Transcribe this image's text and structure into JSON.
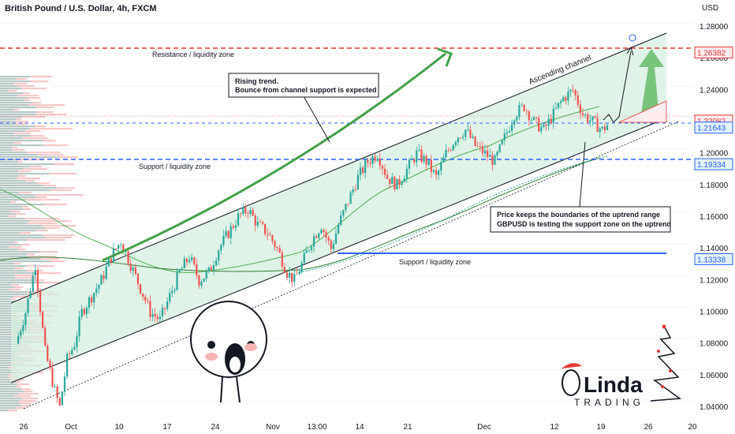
{
  "header": {
    "title": "British Pound / U.S. Dollar, 4h, FXCM",
    "currency": "USD"
  },
  "colors": {
    "up": "#26a69a",
    "down": "#ef5350",
    "channel_fill": "#d6efe0",
    "resistance": "#e53935",
    "support": "#2962ff",
    "arrow_green": "#43a047"
  },
  "annotations": {
    "resistance_zone": "Resistance / liquidity zone",
    "support_zone_1": "Support / liquidity zone",
    "support_zone_2": "Support / liquidity zone",
    "ascending_channel": "Ascending channel",
    "callout_1_line1": "Rising trend.",
    "callout_1_line2": "Bounce from channel support is expected",
    "callout_2_line1": "Price keeps the boundaries of the uptrend range",
    "callout_2_line2": "GBPUSD is testing the support zone on the uptrend"
  },
  "logo": {
    "brand_text": "Linda",
    "sub_text": "TRADING"
  },
  "chart_data": {
    "type": "candlestick",
    "symbol": "GBPUSD",
    "timeframe": "4h",
    "ylim": [
      1.033,
      1.29
    ],
    "y_ticks": [
      "1.28000",
      "1.26000",
      "1.24000",
      "1.22000",
      "1.20000",
      "1.18000",
      "1.16000",
      "1.14000",
      "1.12000",
      "1.10000",
      "1.08000",
      "1.06000",
      "1.04000"
    ],
    "x_ticks": [
      "26",
      "Oct",
      "10",
      "17",
      "24",
      "Nov",
      "13:00",
      "14",
      "21",
      "Dec",
      "12",
      "19",
      "26",
      "20"
    ],
    "price_labels": [
      {
        "value": "1.26382",
        "kind": "resistance"
      },
      {
        "value": "1.22082",
        "kind": "last"
      },
      {
        "value": "1.21643",
        "kind": "support"
      },
      {
        "value": "1.19334",
        "kind": "support"
      },
      {
        "value": "1.13338",
        "kind": "support"
      }
    ],
    "levels": [
      {
        "name": "Resistance / liquidity zone",
        "price": 1.26382
      },
      {
        "name": "Support / liquidity zone",
        "price": 1.19334
      },
      {
        "name": "Support / liquidity zone",
        "price": 1.13338
      },
      {
        "name": "support",
        "price": 1.21643
      }
    ],
    "close_path": [
      [
        0,
        1.08
      ],
      [
        4,
        1.1
      ],
      [
        8,
        1.13
      ],
      [
        12,
        1.075
      ],
      [
        16,
        1.05
      ],
      [
        18,
        1.04
      ],
      [
        21,
        1.07
      ],
      [
        24,
        1.08
      ],
      [
        27,
        1.1
      ],
      [
        31,
        1.11
      ],
      [
        35,
        1.12
      ],
      [
        39,
        1.135
      ],
      [
        43,
        1.145
      ],
      [
        47,
        1.13
      ],
      [
        51,
        1.115
      ],
      [
        55,
        1.1
      ],
      [
        59,
        1.095
      ],
      [
        63,
        1.11
      ],
      [
        67,
        1.125
      ],
      [
        71,
        1.135
      ],
      [
        75,
        1.12
      ],
      [
        79,
        1.125
      ],
      [
        83,
        1.14
      ],
      [
        87,
        1.15
      ],
      [
        91,
        1.16
      ],
      [
        95,
        1.165
      ],
      [
        99,
        1.155
      ],
      [
        103,
        1.15
      ],
      [
        107,
        1.14
      ],
      [
        111,
        1.125
      ],
      [
        114,
        1.12
      ],
      [
        117,
        1.13
      ],
      [
        121,
        1.145
      ],
      [
        125,
        1.155
      ],
      [
        129,
        1.14
      ],
      [
        132,
        1.155
      ],
      [
        136,
        1.17
      ],
      [
        140,
        1.185
      ],
      [
        144,
        1.195
      ],
      [
        148,
        1.2
      ],
      [
        152,
        1.185
      ],
      [
        156,
        1.18
      ],
      [
        160,
        1.19
      ],
      [
        164,
        1.2
      ],
      [
        168,
        1.195
      ],
      [
        172,
        1.185
      ],
      [
        176,
        1.2
      ],
      [
        180,
        1.21
      ],
      [
        184,
        1.215
      ],
      [
        188,
        1.205
      ],
      [
        192,
        1.2
      ],
      [
        196,
        1.195
      ],
      [
        200,
        1.21
      ],
      [
        204,
        1.225
      ],
      [
        208,
        1.23
      ],
      [
        212,
        1.22
      ],
      [
        216,
        1.215
      ],
      [
        220,
        1.225
      ],
      [
        224,
        1.235
      ],
      [
        228,
        1.24
      ],
      [
        232,
        1.225
      ],
      [
        236,
        1.22
      ],
      [
        240,
        1.215
      ],
      [
        242,
        1.218
      ]
    ]
  }
}
